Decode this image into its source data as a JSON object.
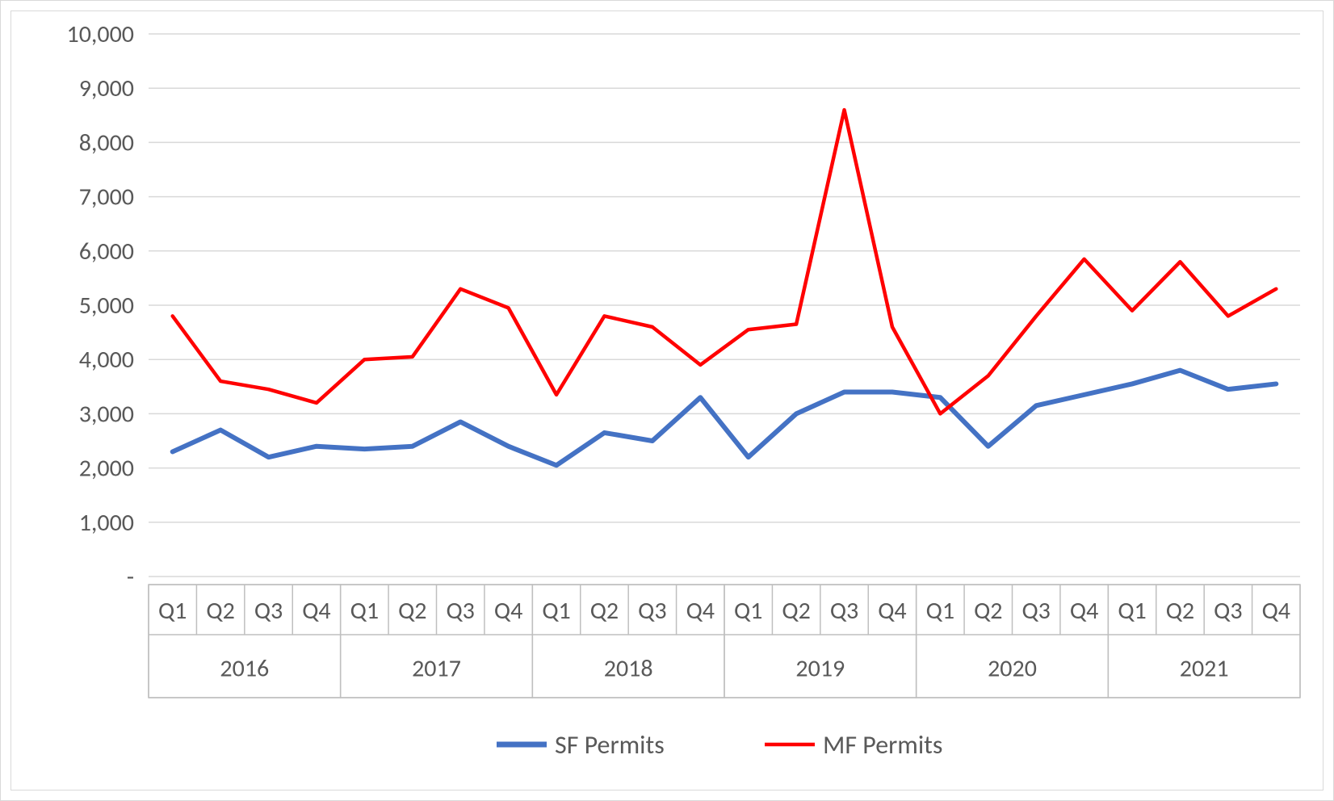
{
  "chart": {
    "type": "line",
    "background_color": "#ffffff",
    "outer_border_color": "#d9d9d9",
    "inner_border_color": "#d9d9d9",
    "grid_color": "#d9d9d9",
    "axis_line_color": "#bfbfbf",
    "tick_label_color": "#595959",
    "tick_fontsize": 30,
    "year_fontsize": 30,
    "legend_fontsize": 32,
    "y_axis": {
      "min": 0,
      "max": 10000,
      "tick_step": 1000,
      "tick_labels": [
        "-",
        "1,000",
        "2,000",
        "3,000",
        "4,000",
        "5,000",
        "6,000",
        "7,000",
        "8,000",
        "9,000",
        "10,000"
      ]
    },
    "years": [
      "2016",
      "2017",
      "2018",
      "2019",
      "2020",
      "2021"
    ],
    "quarters_per_year": [
      "Q1",
      "Q2",
      "Q3",
      "Q4"
    ],
    "series": [
      {
        "name": "SF Permits",
        "color": "#4472c4",
        "line_width": 6,
        "values": [
          2300,
          2700,
          2200,
          2400,
          2350,
          2400,
          2850,
          2400,
          2050,
          2650,
          2500,
          3300,
          2200,
          3000,
          3400,
          3400,
          3300,
          2400,
          3150,
          3350,
          3550,
          3800,
          3450,
          3550
        ]
      },
      {
        "name": "MF Permits",
        "color": "#ff0000",
        "line_width": 4.5,
        "values": [
          4800,
          3600,
          3450,
          3200,
          4000,
          4050,
          5300,
          4950,
          3350,
          4800,
          4600,
          3900,
          4550,
          4650,
          8600,
          4600,
          3000,
          3700,
          4800,
          5850,
          4900,
          5800,
          4800,
          5300
        ]
      }
    ],
    "legend": {
      "items": [
        {
          "label": "SF Permits",
          "color": "#4472c4",
          "line_width": 7
        },
        {
          "label": "MF Permits",
          "color": "#ff0000",
          "line_width": 4.5
        }
      ]
    }
  }
}
